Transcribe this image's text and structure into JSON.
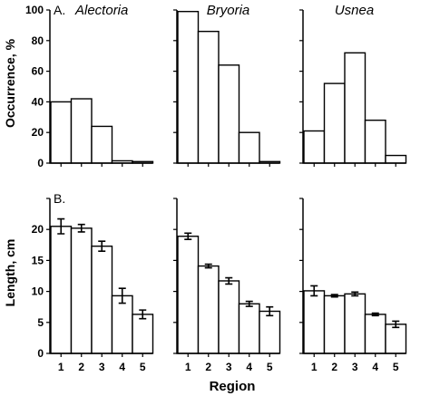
{
  "chart_data": [
    {
      "type": "bar",
      "panel_label": "A.",
      "title": "Alectoria",
      "ylabel": "Occurrence, %",
      "categories": [
        "1",
        "2",
        "3",
        "4",
        "5"
      ],
      "values": [
        40,
        42,
        24,
        1.5,
        1
      ],
      "ylim": [
        0,
        100
      ],
      "yticks": [
        "0",
        "20",
        "40",
        "60",
        "80",
        "100"
      ]
    },
    {
      "type": "bar",
      "title": "Bryoria",
      "categories": [
        "1",
        "2",
        "3",
        "4",
        "5"
      ],
      "values": [
        99,
        86,
        64,
        20,
        1
      ],
      "ylim": [
        0,
        100
      ]
    },
    {
      "type": "bar",
      "title": "Usnea",
      "categories": [
        "1",
        "2",
        "3",
        "4",
        "5"
      ],
      "values": [
        21,
        52,
        72,
        28,
        5
      ],
      "ylim": [
        0,
        100
      ]
    },
    {
      "type": "bar",
      "panel_label": "B.",
      "ylabel": "Length, cm",
      "categories": [
        "1",
        "2",
        "3",
        "4",
        "5"
      ],
      "values": [
        20.5,
        20.2,
        17.3,
        9.3,
        6.3
      ],
      "errors": [
        1.2,
        0.6,
        0.8,
        1.2,
        0.7
      ],
      "ylim": [
        0,
        25
      ],
      "yticks": [
        "0",
        "5",
        "10",
        "15",
        "20"
      ],
      "xticks": [
        "1",
        "2",
        "3",
        "4",
        "5"
      ]
    },
    {
      "type": "bar",
      "categories": [
        "1",
        "2",
        "3",
        "4",
        "5"
      ],
      "values": [
        18.9,
        14.1,
        11.7,
        8.0,
        6.8
      ],
      "errors": [
        0.5,
        0.3,
        0.5,
        0.4,
        0.7
      ],
      "ylim": [
        0,
        25
      ],
      "xticks": [
        "1",
        "2",
        "3",
        "4",
        "5"
      ]
    },
    {
      "type": "bar",
      "categories": [
        "1",
        "2",
        "3",
        "4",
        "5"
      ],
      "values": [
        10.1,
        9.3,
        9.6,
        6.3,
        4.7
      ],
      "errors": [
        0.8,
        0.2,
        0.3,
        0.2,
        0.5
      ],
      "ylim": [
        0,
        25
      ],
      "xticks": [
        "1",
        "2",
        "3",
        "4",
        "5"
      ]
    }
  ],
  "shared": {
    "xlabel": "Region"
  }
}
